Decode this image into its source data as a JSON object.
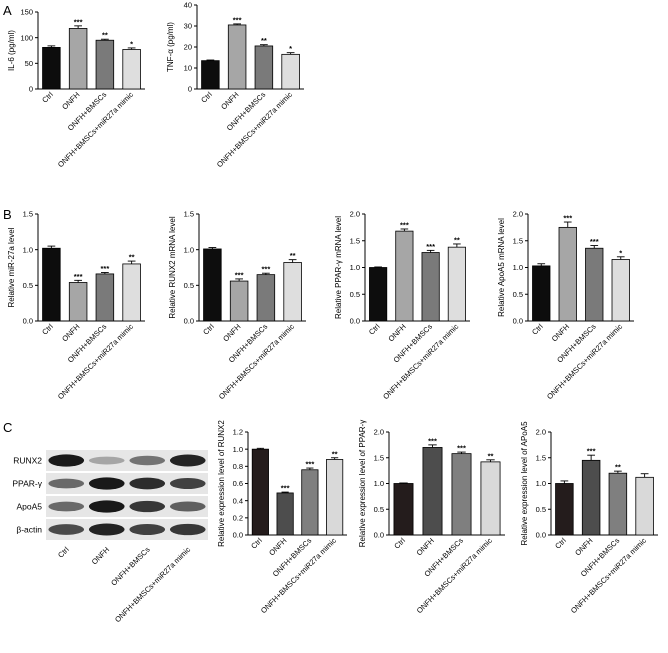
{
  "panels": {
    "a": "A",
    "b": "B",
    "c": "C"
  },
  "western_blot": {
    "rows": [
      "RUNX2",
      "PPAR-γ",
      "ApoA5",
      "β-actin"
    ],
    "lanes": [
      "Ctrl",
      "ONFH",
      "ONFH+BMSCs",
      "ONFH+BMSCs+miR27a mimic"
    ],
    "intensity": [
      [
        0.95,
        0.25,
        0.5,
        0.9
      ],
      [
        0.55,
        0.95,
        0.85,
        0.75
      ],
      [
        0.55,
        0.95,
        0.8,
        0.6
      ],
      [
        0.7,
        0.9,
        0.75,
        0.8
      ]
    ]
  },
  "chart_data": [
    {
      "id": "il6",
      "type": "bar",
      "panel": "A",
      "ylabel": "IL-6 (pg/ml)",
      "ylim": [
        0,
        150
      ],
      "ticks": [
        0,
        50,
        100,
        150
      ],
      "tick_labels": [
        "0",
        "50",
        "100",
        "150"
      ],
      "categories": [
        "Ctrl",
        "ONFH",
        "ONFH+BMSCs",
        "ONFH+BMSCs+miR27a mimic"
      ],
      "values": [
        81,
        118,
        95,
        77
      ],
      "errors": [
        3,
        5,
        2,
        3
      ],
      "significance": [
        "",
        "***",
        "**",
        "*"
      ],
      "colors": [
        "#0d0d0d",
        "#a6a6a6",
        "#7a7a7a",
        "#dedede"
      ]
    },
    {
      "id": "tnfa",
      "type": "bar",
      "panel": "A",
      "ylabel": "TNF-α (pg/ml)",
      "ylim": [
        0,
        40
      ],
      "ticks": [
        0,
        10,
        20,
        30,
        40
      ],
      "tick_labels": [
        "0",
        "10",
        "20",
        "30",
        "40"
      ],
      "categories": [
        "Ctrl",
        "ONFH",
        "ONFH+BMSCs",
        "ONFH+BMSCs+miR27a mimic"
      ],
      "values": [
        13.5,
        30.5,
        20.5,
        16.5
      ],
      "errors": [
        0.3,
        0.5,
        0.6,
        0.8
      ],
      "significance": [
        "",
        "***",
        "**",
        "*"
      ],
      "colors": [
        "#0d0d0d",
        "#a6a6a6",
        "#7a7a7a",
        "#dedede"
      ]
    },
    {
      "id": "mir27a",
      "type": "bar",
      "panel": "B",
      "ylabel": "Relative miR-27a level",
      "ylim": [
        0,
        1.5
      ],
      "ticks": [
        0,
        0.5,
        1.0,
        1.5
      ],
      "tick_labels": [
        "0.0",
        "0.5",
        "1.0",
        "1.5"
      ],
      "categories": [
        "Ctrl",
        "ONFH",
        "ONFH+BMSCs",
        "ONFH+BMSCs+miR27a mimic"
      ],
      "values": [
        1.02,
        0.54,
        0.66,
        0.8
      ],
      "errors": [
        0.03,
        0.03,
        0.02,
        0.04
      ],
      "significance": [
        "",
        "***",
        "***",
        "**"
      ],
      "colors": [
        "#0d0d0d",
        "#a6a6a6",
        "#7a7a7a",
        "#dedede"
      ]
    },
    {
      "id": "runx2_mrna",
      "type": "bar",
      "panel": "B",
      "ylabel": "Relative RUNX2 mRNA level",
      "ylim": [
        0,
        1.5
      ],
      "ticks": [
        0,
        0.5,
        1.0,
        1.5
      ],
      "tick_labels": [
        "0.0",
        "0.5",
        "1.0",
        "1.5"
      ],
      "categories": [
        "Ctrl",
        "ONFH",
        "ONFH+BMSCs",
        "ONFH+BMSCs+miR27a mimic"
      ],
      "values": [
        1.01,
        0.56,
        0.65,
        0.82
      ],
      "errors": [
        0.02,
        0.03,
        0.02,
        0.04
      ],
      "significance": [
        "",
        "***",
        "***",
        "**"
      ],
      "colors": [
        "#0d0d0d",
        "#a6a6a6",
        "#7a7a7a",
        "#dedede"
      ]
    },
    {
      "id": "pparg_mrna",
      "type": "bar",
      "panel": "B",
      "ylabel": "Relative PPAR-γ mRNA level",
      "ylim": [
        0,
        2.0
      ],
      "ticks": [
        0,
        0.5,
        1.0,
        1.5,
        2.0
      ],
      "tick_labels": [
        "0.0",
        "0.5",
        "1.0",
        "1.5",
        "2.0"
      ],
      "categories": [
        "Ctrl",
        "ONFH",
        "ONFH+BMSCs",
        "ONFH+BMSCs+miR27a mimic"
      ],
      "values": [
        1.0,
        1.68,
        1.28,
        1.38
      ],
      "errors": [
        0.01,
        0.04,
        0.04,
        0.06
      ],
      "significance": [
        "",
        "***",
        "***",
        "**"
      ],
      "colors": [
        "#0d0d0d",
        "#a6a6a6",
        "#7a7a7a",
        "#dedede"
      ]
    },
    {
      "id": "apoa5_mrna",
      "type": "bar",
      "panel": "B",
      "ylabel": "Relative ApoA5 mRNA level",
      "ylim": [
        0,
        2.0
      ],
      "ticks": [
        0,
        0.5,
        1.0,
        1.5,
        2.0
      ],
      "tick_labels": [
        "0.0",
        "0.5",
        "1.0",
        "1.5",
        "2.0"
      ],
      "categories": [
        "Ctrl",
        "ONFH",
        "ONFH+BMSCs",
        "ONFH+BMSCs+miR27a mimic"
      ],
      "values": [
        1.03,
        1.75,
        1.36,
        1.15
      ],
      "errors": [
        0.04,
        0.1,
        0.05,
        0.05
      ],
      "significance": [
        "",
        "***",
        "***",
        "*"
      ],
      "colors": [
        "#0d0d0d",
        "#a6a6a6",
        "#7a7a7a",
        "#dedede"
      ]
    },
    {
      "id": "runx2_prot",
      "type": "bar",
      "panel": "C",
      "ylabel": "Relative expression level of  RUNX2",
      "ylim": [
        0,
        1.2
      ],
      "ticks": [
        0,
        0.2,
        0.4,
        0.6,
        0.8,
        1.0,
        1.2
      ],
      "tick_labels": [
        "0.0",
        "0.2",
        "0.4",
        "0.6",
        "0.8",
        "1.0",
        "1.2"
      ],
      "categories": [
        "Ctrl",
        "ONFH",
        "ONFH+BMSCs",
        "ONFH+BMSCs+miR27a mimic"
      ],
      "values": [
        1.0,
        0.49,
        0.76,
        0.88
      ],
      "errors": [
        0.01,
        0.01,
        0.02,
        0.02
      ],
      "significance": [
        "",
        "***",
        "***",
        "**"
      ],
      "colors": [
        "#241c1c",
        "#4d4d4d",
        "#7f7f7f",
        "#d9d9d9"
      ]
    },
    {
      "id": "pparg_prot",
      "type": "bar",
      "panel": "C",
      "ylabel": "Relative expression level of PPAR-γ",
      "ylim": [
        0,
        2.0
      ],
      "ticks": [
        0,
        0.5,
        1.0,
        1.5,
        2.0
      ],
      "tick_labels": [
        "0.0",
        "0.5",
        "1.0",
        "1.5",
        "2.0"
      ],
      "categories": [
        "Ctrl",
        "ONFH",
        "ONFH+BMSCs",
        "ONFH+BMSCs+miR27a mimic"
      ],
      "values": [
        1.0,
        1.7,
        1.58,
        1.42
      ],
      "errors": [
        0.01,
        0.05,
        0.03,
        0.04
      ],
      "significance": [
        "",
        "***",
        "***",
        "**"
      ],
      "colors": [
        "#241c1c",
        "#4d4d4d",
        "#7f7f7f",
        "#d9d9d9"
      ]
    },
    {
      "id": "apoa5_prot",
      "type": "bar",
      "panel": "C",
      "ylabel": "Relative expression level of  APoA5",
      "ylim": [
        0,
        2.0
      ],
      "ticks": [
        0,
        0.5,
        1.0,
        1.5,
        2.0
      ],
      "tick_labels": [
        "0.0",
        "0.5",
        "1.0",
        "1.5",
        "2.0"
      ],
      "categories": [
        "Ctrl",
        "ONFH",
        "ONFH+BMSCs",
        "ONFH+BMSCs+miR27a mimic"
      ],
      "values": [
        1.0,
        1.45,
        1.2,
        1.12
      ],
      "errors": [
        0.05,
        0.1,
        0.04,
        0.07
      ],
      "significance": [
        "",
        "***",
        "**",
        ""
      ],
      "colors": [
        "#241c1c",
        "#4d4d4d",
        "#7f7f7f",
        "#d9d9d9"
      ]
    }
  ]
}
